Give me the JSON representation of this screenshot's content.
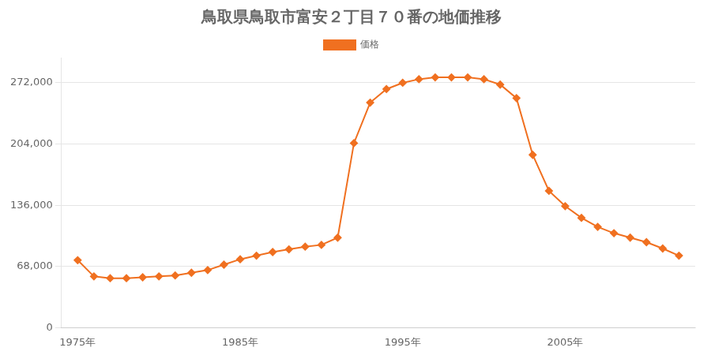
{
  "chart_data": {
    "type": "line",
    "title": "鳥取県鳥取市富安２丁目７０番の地価推移",
    "x": [
      1975,
      1976,
      1977,
      1978,
      1979,
      1980,
      1981,
      1982,
      1983,
      1984,
      1985,
      1986,
      1987,
      1988,
      1989,
      1990,
      1991,
      1992,
      1993,
      1994,
      1995,
      1996,
      1997,
      1998,
      1999,
      2000,
      2001,
      2002,
      2003,
      2004,
      2005,
      2006,
      2007,
      2008,
      2009,
      2010,
      2011,
      2012
    ],
    "series": [
      {
        "name": "価格",
        "color": "#f07020",
        "marker": "diamond",
        "values": [
          75000,
          57000,
          55000,
          55000,
          56000,
          57000,
          58000,
          61000,
          64000,
          70000,
          76000,
          80000,
          84000,
          87000,
          90000,
          92000,
          100000,
          205000,
          250000,
          265000,
          272000,
          276000,
          278000,
          278000,
          278000,
          276000,
          270000,
          255000,
          192000,
          152000,
          135000,
          122000,
          112000,
          105000,
          100000,
          95000,
          88000,
          80000
        ]
      }
    ],
    "xlim": [
      1974,
      2013
    ],
    "xticks": [
      {
        "value": 1975,
        "label": "1975年"
      },
      {
        "value": 1985,
        "label": "1985年"
      },
      {
        "value": 1995,
        "label": "1995年"
      },
      {
        "value": 2005,
        "label": "2005年"
      }
    ],
    "ylim": [
      0,
      300000
    ],
    "yticks": [
      0,
      {
        "value": 68000,
        "label": "68,000"
      },
      {
        "value": 136000,
        "label": "136,000"
      },
      {
        "value": 204000,
        "label": "204,000"
      },
      {
        "value": 272000,
        "label": "272,000"
      }
    ],
    "grid": "y",
    "legend": "top"
  }
}
